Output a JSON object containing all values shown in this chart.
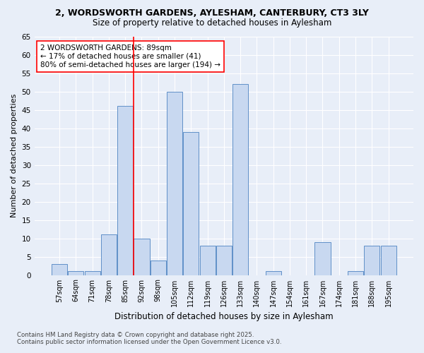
{
  "title": "2, WORDSWORTH GARDENS, AYLESHAM, CANTERBURY, CT3 3LY",
  "subtitle": "Size of property relative to detached houses in Aylesham",
  "xlabel": "Distribution of detached houses by size in Aylesham",
  "ylabel": "Number of detached properties",
  "categories": [
    "57sqm",
    "64sqm",
    "71sqm",
    "78sqm",
    "85sqm",
    "92sqm",
    "98sqm",
    "105sqm",
    "112sqm",
    "119sqm",
    "126sqm",
    "133sqm",
    "140sqm",
    "147sqm",
    "154sqm",
    "161sqm",
    "167sqm",
    "174sqm",
    "181sqm",
    "188sqm",
    "195sqm"
  ],
  "values": [
    3,
    1,
    1,
    11,
    46,
    10,
    4,
    50,
    39,
    8,
    8,
    52,
    0,
    1,
    0,
    0,
    9,
    0,
    1,
    8,
    8
  ],
  "bar_color": "#c8d8f0",
  "bar_edge_color": "#6090c8",
  "background_color": "#e8eef8",
  "grid_color": "#ffffff",
  "annotation_line1": "2 WORDSWORTH GARDENS: 89sqm",
  "annotation_line2": "← 17% of detached houses are smaller (41)",
  "annotation_line3": "80% of semi-detached houses are larger (194) →",
  "ref_line_index": 4.5,
  "ylim": [
    0,
    65
  ],
  "yticks": [
    0,
    5,
    10,
    15,
    20,
    25,
    30,
    35,
    40,
    45,
    50,
    55,
    60,
    65
  ],
  "footer_line1": "Contains HM Land Registry data © Crown copyright and database right 2025.",
  "footer_line2": "Contains public sector information licensed under the Open Government Licence v3.0."
}
